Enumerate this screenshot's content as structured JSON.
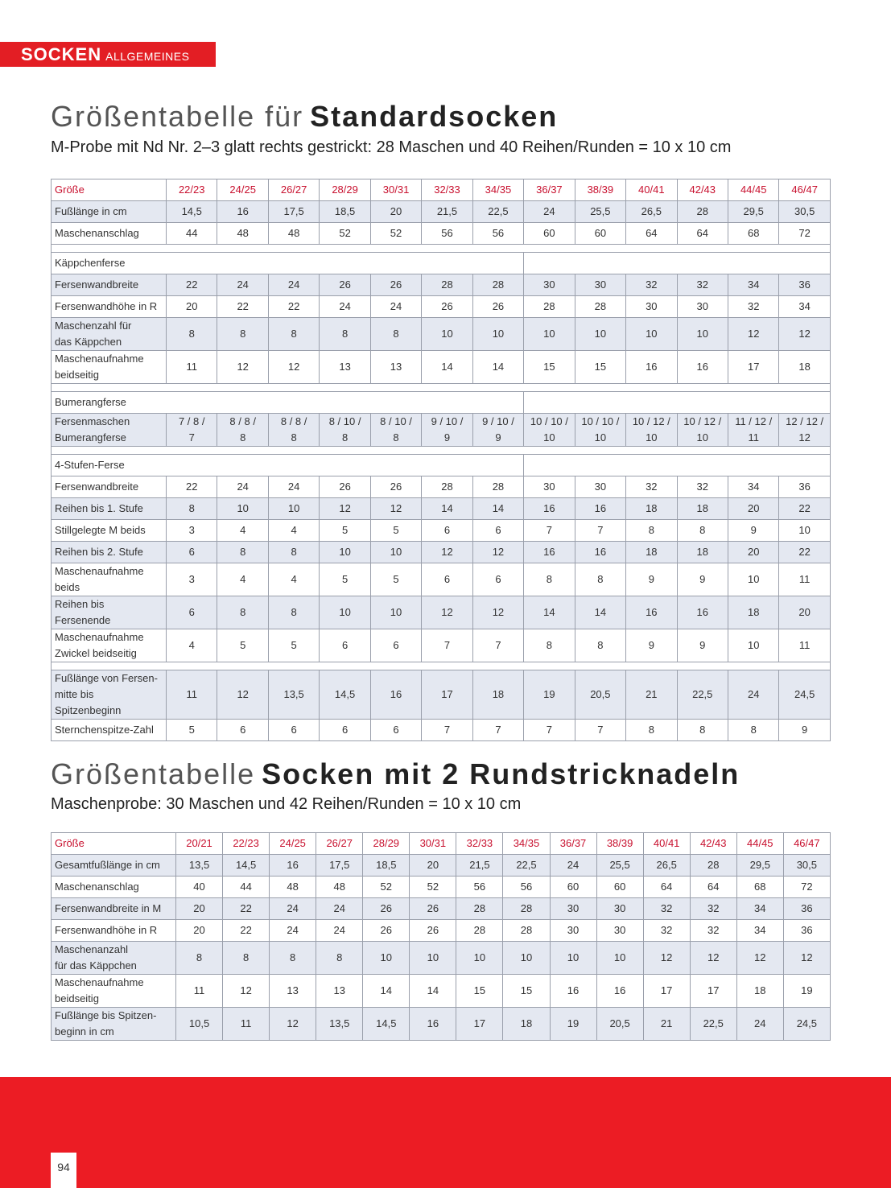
{
  "header": {
    "section": "SOCKEN",
    "subsection": "ALLGEMEINES"
  },
  "table1": {
    "title_light": "Größentabelle für",
    "title_bold": "Standardsocken",
    "subtitle": "M-Probe mit Nd Nr. 2–3 glatt rechts gestrickt: 28 Maschen und 40 Reihen/Runden = 10 x 10 cm",
    "header": [
      "Größe",
      "22/23",
      "24/25",
      "26/27",
      "28/29",
      "30/31",
      "32/33",
      "34/35",
      "36/37",
      "38/39",
      "40/41",
      "42/43",
      "44/45",
      "46/47"
    ],
    "groups": [
      {
        "rows": [
          [
            "Fußlänge in cm",
            "14,5",
            "16",
            "17,5",
            "18,5",
            "20",
            "21,5",
            "22,5",
            "24",
            "25,5",
            "26,5",
            "28",
            "29,5",
            "30,5"
          ],
          [
            "Maschenanschlag",
            "44",
            "48",
            "48",
            "52",
            "52",
            "56",
            "56",
            "60",
            "60",
            "64",
            "64",
            "68",
            "72"
          ]
        ]
      },
      {
        "section": "Käppchenferse",
        "rows": [
          [
            "Fersenwandbreite",
            "22",
            "24",
            "24",
            "26",
            "26",
            "28",
            "28",
            "30",
            "30",
            "32",
            "32",
            "34",
            "36"
          ],
          [
            "Fersenwandhöhe in R",
            "20",
            "22",
            "22",
            "24",
            "24",
            "26",
            "26",
            "28",
            "28",
            "30",
            "30",
            "32",
            "34"
          ],
          [
            "Maschenzahl für\ndas Käppchen",
            "8",
            "8",
            "8",
            "8",
            "8",
            "10",
            "10",
            "10",
            "10",
            "10",
            "10",
            "12",
            "12"
          ],
          [
            "Maschenaufnahme\nbeidseitig",
            "11",
            "12",
            "12",
            "13",
            "13",
            "14",
            "14",
            "15",
            "15",
            "16",
            "16",
            "17",
            "18"
          ]
        ]
      },
      {
        "section": "Bumerangferse",
        "rows": [
          [
            "Fersenmaschen\nBumerangferse",
            "7 / 8 /\n7",
            "8 / 8 /\n8",
            "8 / 8 /\n8",
            "8 / 10 /\n8",
            "8 / 10 /\n8",
            "9 / 10 /\n9",
            "9 / 10 /\n9",
            "10 / 10 /\n10",
            "10 / 10 /\n10",
            "10 / 12 /\n10",
            "10 / 12 /\n10",
            "11 / 12 /\n11",
            "12 / 12 /\n12"
          ]
        ]
      },
      {
        "section": "4-Stufen-Ferse",
        "rows": [
          [
            "Fersenwandbreite",
            "22",
            "24",
            "24",
            "26",
            "26",
            "28",
            "28",
            "30",
            "30",
            "32",
            "32",
            "34",
            "36"
          ],
          [
            "Reihen bis 1. Stufe",
            "8",
            "10",
            "10",
            "12",
            "12",
            "14",
            "14",
            "16",
            "16",
            "18",
            "18",
            "20",
            "22"
          ],
          [
            "Stillgelegte M beids",
            "3",
            "4",
            "4",
            "5",
            "5",
            "6",
            "6",
            "7",
            "7",
            "8",
            "8",
            "9",
            "10"
          ],
          [
            "Reihen bis 2. Stufe",
            "6",
            "8",
            "8",
            "10",
            "10",
            "12",
            "12",
            "16",
            "16",
            "18",
            "18",
            "20",
            "22"
          ],
          [
            "Maschenaufnahme beids",
            "3",
            "4",
            "4",
            "5",
            "5",
            "6",
            "6",
            "8",
            "8",
            "9",
            "9",
            "10",
            "11"
          ],
          [
            "Reihen bis Fersenende",
            "6",
            "8",
            "8",
            "10",
            "10",
            "12",
            "12",
            "14",
            "14",
            "16",
            "16",
            "18",
            "20"
          ],
          [
            "Maschenaufnahme\nZwickel beidseitig",
            "4",
            "5",
            "5",
            "6",
            "6",
            "7",
            "7",
            "8",
            "8",
            "9",
            "9",
            "10",
            "11"
          ]
        ]
      },
      {
        "rows": [
          [
            "Fußlänge von Fersen-\nmitte bis Spitzenbeginn",
            "11",
            "12",
            "13,5",
            "14,5",
            "16",
            "17",
            "18",
            "19",
            "20,5",
            "21",
            "22,5",
            "24",
            "24,5"
          ],
          [
            "Sternchenspitze-Zahl",
            "5",
            "6",
            "6",
            "6",
            "6",
            "7",
            "7",
            "7",
            "7",
            "8",
            "8",
            "8",
            "9"
          ]
        ]
      }
    ]
  },
  "table2": {
    "title_light": "Größentabelle",
    "title_bold": "Socken mit 2 Rundstricknadeln",
    "subtitle": "Maschenprobe: 30 Maschen und 42 Reihen/Runden = 10 x 10 cm",
    "header": [
      "Größe",
      "20/21",
      "22/23",
      "24/25",
      "26/27",
      "28/29",
      "30/31",
      "32/33",
      "34/35",
      "36/37",
      "38/39",
      "40/41",
      "42/43",
      "44/45",
      "46/47"
    ],
    "groups": [
      {
        "rows": [
          [
            "Gesamtfußlänge in cm",
            "13,5",
            "14,5",
            "16",
            "17,5",
            "18,5",
            "20",
            "21,5",
            "22,5",
            "24",
            "25,5",
            "26,5",
            "28",
            "29,5",
            "30,5"
          ],
          [
            "Maschenanschlag",
            "40",
            "44",
            "48",
            "48",
            "52",
            "52",
            "56",
            "56",
            "60",
            "60",
            "64",
            "64",
            "68",
            "72"
          ],
          [
            "Fersenwandbreite in  M",
            "20",
            "22",
            "24",
            "24",
            "26",
            "26",
            "28",
            "28",
            "30",
            "30",
            "32",
            "32",
            "34",
            "36"
          ],
          [
            "Fersenwandhöhe in R",
            "20",
            "22",
            "24",
            "24",
            "26",
            "26",
            "28",
            "28",
            "30",
            "30",
            "32",
            "32",
            "34",
            "36"
          ],
          [
            "Maschenanzahl\nfür das Käppchen",
            "8",
            "8",
            "8",
            "8",
            "10",
            "10",
            "10",
            "10",
            "10",
            "10",
            "12",
            "12",
            "12",
            "12"
          ],
          [
            "Maschenaufnahme\nbeidseitig",
            "11",
            "12",
            "13",
            "13",
            "14",
            "14",
            "15",
            "15",
            "16",
            "16",
            "17",
            "17",
            "18",
            "19"
          ],
          [
            "Fußlänge bis Spitzen-\nbeginn in cm",
            "10,5",
            "11",
            "12",
            "13,5",
            "14,5",
            "16",
            "17",
            "18",
            "19",
            "20,5",
            "21",
            "22,5",
            "24",
            "24,5"
          ]
        ]
      }
    ]
  },
  "page_number": "94"
}
